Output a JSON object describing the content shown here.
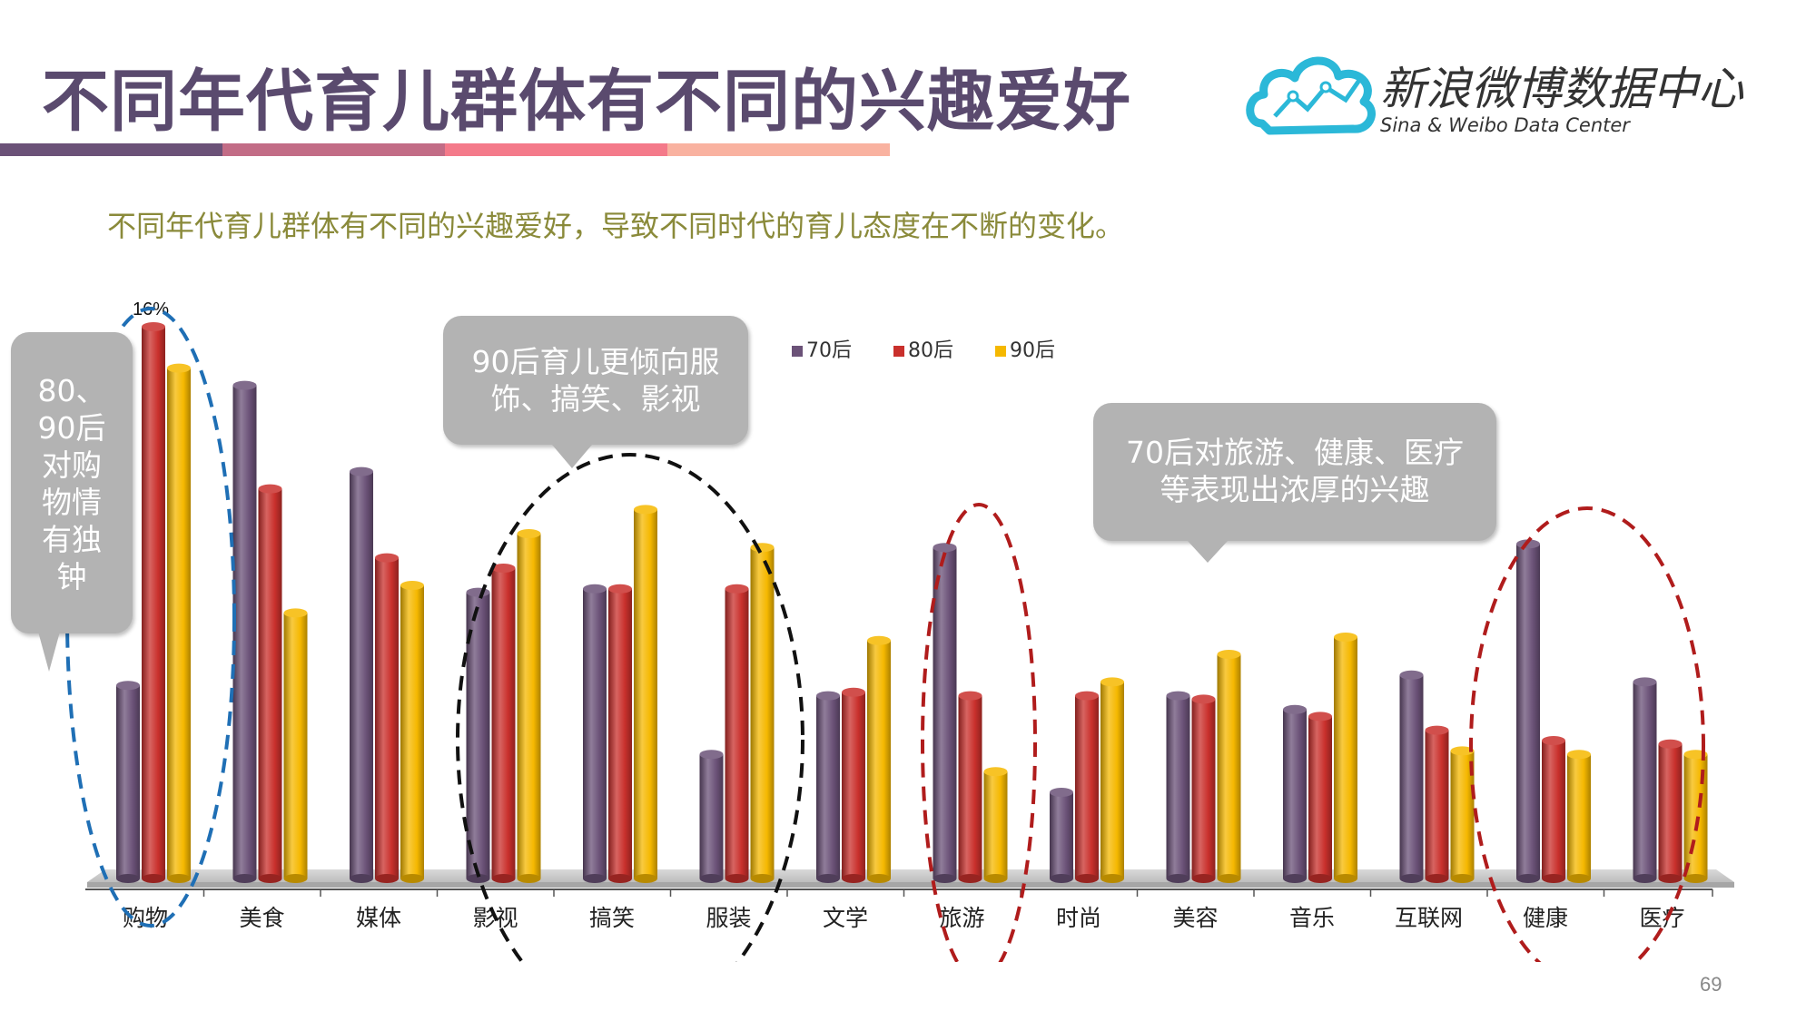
{
  "title": "不同年代育儿群体有不同的兴趣爱好",
  "subtitle": "不同年代育儿群体有不同的兴趣爱好，导致不同时代的育儿态度在不断的变化。",
  "logo": {
    "cn": "新浪微博数据中心",
    "en": "Sina & Weibo Data Center",
    "icon": "cloud-chart-icon"
  },
  "band_colors": [
    "#6b5278",
    "#c26c86",
    "#f47a8a",
    "#f9b2a0"
  ],
  "callouts": {
    "left": "80、90后对购物情有独钟",
    "middle": "90后育儿更倾向服饰、搞笑、影视",
    "right": "70后对旅游、健康、医疗等表现出浓厚的兴趣"
  },
  "page_number": "69",
  "colors": {
    "s70": "#6b5278",
    "s80": "#c9302c",
    "s90": "#f5b800"
  },
  "chart_data": {
    "type": "bar",
    "categories": [
      "购物",
      "美食",
      "媒体",
      "影视",
      "搞笑",
      "服装",
      "文学",
      "旅游",
      "时尚",
      "美容",
      "音乐",
      "互联网",
      "健康",
      "医疗"
    ],
    "series": [
      {
        "name": "70后",
        "values": [
          5.6,
          14.3,
          11.8,
          8.3,
          8.4,
          3.6,
          5.3,
          9.6,
          2.5,
          5.3,
          4.9,
          5.9,
          9.7,
          5.7
        ]
      },
      {
        "name": "80后",
        "values": [
          16.0,
          11.3,
          9.3,
          9.0,
          8.4,
          8.4,
          5.4,
          5.3,
          5.3,
          5.2,
          4.7,
          4.3,
          4.0,
          3.9
        ]
      },
      {
        "name": "90后",
        "values": [
          14.8,
          7.7,
          8.5,
          10.0,
          10.7,
          9.6,
          6.9,
          3.1,
          5.7,
          6.5,
          7.0,
          3.7,
          3.6,
          3.6
        ]
      }
    ],
    "annotations": [
      "16%"
    ],
    "ylim": [
      0,
      16
    ],
    "legend": "top-center",
    "grid": false
  }
}
